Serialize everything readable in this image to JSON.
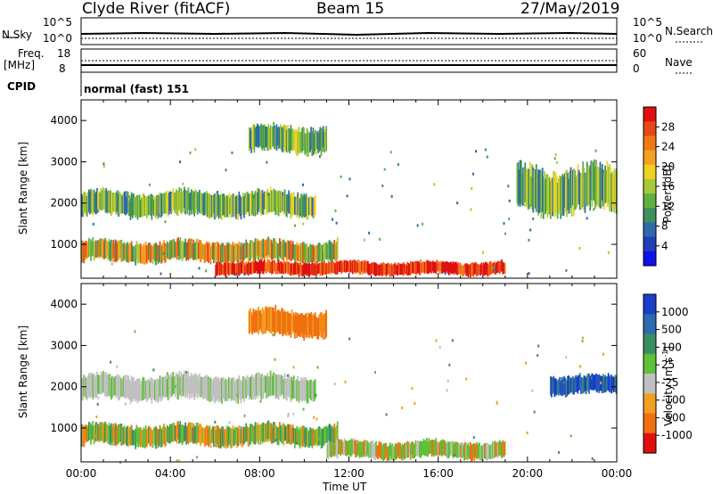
{
  "header": {
    "station": "Clyde River (fitACF)",
    "beam": "Beam 15",
    "date": "27/May/2019"
  },
  "strip_panels": {
    "nsky_label": "N.Sky",
    "nsearch_label": "N.Search",
    "count_ticks": [
      "10^5",
      "10^0"
    ],
    "freq_label_1": "Freq.",
    "freq_label_2": "[MHz]",
    "freq_ticks": [
      "18",
      "8"
    ],
    "nave_label": "Nave",
    "nave_ticks": [
      "60",
      "0"
    ],
    "cpid_label": "CPID",
    "cpid_value": "normal (fast) 151"
  },
  "chart_data": [
    {
      "type": "heatmap",
      "title": "",
      "ylabel": "Slant Range [km]",
      "xlabel": "",
      "xlim": [
        "00:00",
        "24:00"
      ],
      "ylim": [
        180,
        4500
      ],
      "yticks": [
        "1000",
        "2000",
        "3000",
        "4000"
      ],
      "colorbar": {
        "label": "Power [dB]",
        "ticks": [
          "4",
          "8",
          "12",
          "16",
          "20",
          "24",
          "28"
        ],
        "colors": [
          "#1010e8",
          "#1f3fb8",
          "#2f6aa8",
          "#3f8f5f",
          "#5fb03f",
          "#a8c83c",
          "#f0d020",
          "#f5a020",
          "#f07818",
          "#e84818",
          "#e01010"
        ]
      },
      "regions": [
        {
          "name": "band-1800",
          "t_start": 0,
          "t_end": 10.5,
          "r_min": 1650,
          "r_max": 2300,
          "level": "mid"
        },
        {
          "name": "band-800",
          "t_start": 0,
          "t_end": 11.5,
          "r_min": 550,
          "r_max": 1100,
          "level": "mid-high"
        },
        {
          "name": "band-400",
          "t_start": 6,
          "t_end": 19,
          "r_min": 250,
          "r_max": 600,
          "level": "high"
        },
        {
          "name": "patch-3500",
          "t_start": 7.5,
          "t_end": 11,
          "r_min": 3200,
          "r_max": 3900,
          "level": "mid"
        },
        {
          "name": "late-2000",
          "t_start": 19.5,
          "t_end": 24,
          "r_min": 1700,
          "r_max": 2900,
          "level": "mid"
        }
      ]
    },
    {
      "type": "heatmap",
      "title": "",
      "ylabel": "Slant Range [km]",
      "xlabel": "Time UT",
      "xlim": [
        "00:00",
        "24:00"
      ],
      "xticks": [
        "00:00",
        "04:00",
        "08:00",
        "12:00",
        "16:00",
        "20:00",
        "00:00"
      ],
      "ylim": [
        180,
        4500
      ],
      "yticks": [
        "1000",
        "2000",
        "3000",
        "4000"
      ],
      "colorbar": {
        "label": "Velocity [m s",
        "label_sup": "-1",
        "label_end": "]",
        "ticks": [
          "1000",
          "500",
          "100",
          "25",
          "-25",
          "-100",
          "-500",
          "-1000"
        ],
        "colors": [
          "#1a3fc8",
          "#2d6ab0",
          "#3a8f60",
          "#5fc03a",
          "#c0c0c0",
          "#f0a020",
          "#f07010",
          "#e01010"
        ]
      },
      "regions": [
        {
          "name": "band-1800",
          "t_start": 0,
          "t_end": 10.5,
          "r_min": 1650,
          "r_max": 2300,
          "level": "near-zero"
        },
        {
          "name": "band-800",
          "t_start": 0,
          "t_end": 11.5,
          "r_min": 550,
          "r_max": 1100,
          "level": "positive"
        },
        {
          "name": "band-400",
          "t_start": 11,
          "t_end": 19,
          "r_min": 250,
          "r_max": 700,
          "level": "positive-green"
        },
        {
          "name": "patch-3500",
          "t_start": 7.5,
          "t_end": 11,
          "r_min": 3200,
          "r_max": 3900,
          "level": "negative"
        },
        {
          "name": "late-2000",
          "t_start": 21,
          "t_end": 24,
          "r_min": 1800,
          "r_max": 2300,
          "level": "strong-positive"
        }
      ]
    }
  ]
}
